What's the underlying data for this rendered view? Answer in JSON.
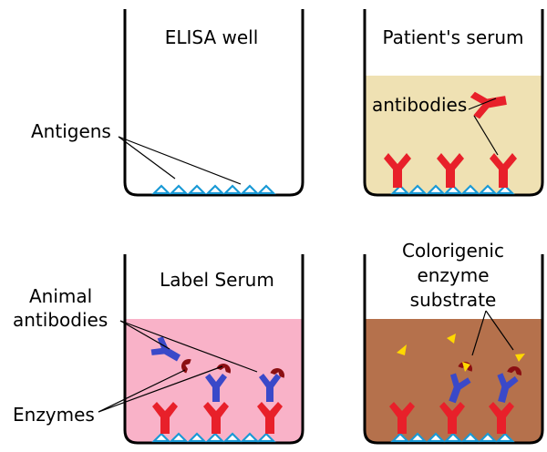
{
  "panels": {
    "elisa_well": {
      "title": "ELISA well",
      "antigens_label": "Antigens"
    },
    "patient_serum": {
      "title": "Patient's serum",
      "antibodies_label": "antibodies",
      "fill_color": "#efe1b3"
    },
    "label_serum": {
      "title": "Label Serum",
      "animal_antibodies_label": "Animal\nantibodies",
      "animal_antibodies_line1": "Animal",
      "animal_antibodies_line2": "antibodies",
      "enzymes_label": "Enzymes",
      "fill_color": "#f9b2c8"
    },
    "colorigenic": {
      "title_line1": "Colorigenic",
      "title_line2": "enzyme",
      "title_line3": "substrate",
      "fill_color": "#b5714c"
    }
  },
  "colors": {
    "antigen": "#1a9ad6",
    "patient_antibody": "#e8202a",
    "animal_antibody": "#3a49c9",
    "enzyme": "#8b0f12",
    "substrate": "#ffd800"
  }
}
